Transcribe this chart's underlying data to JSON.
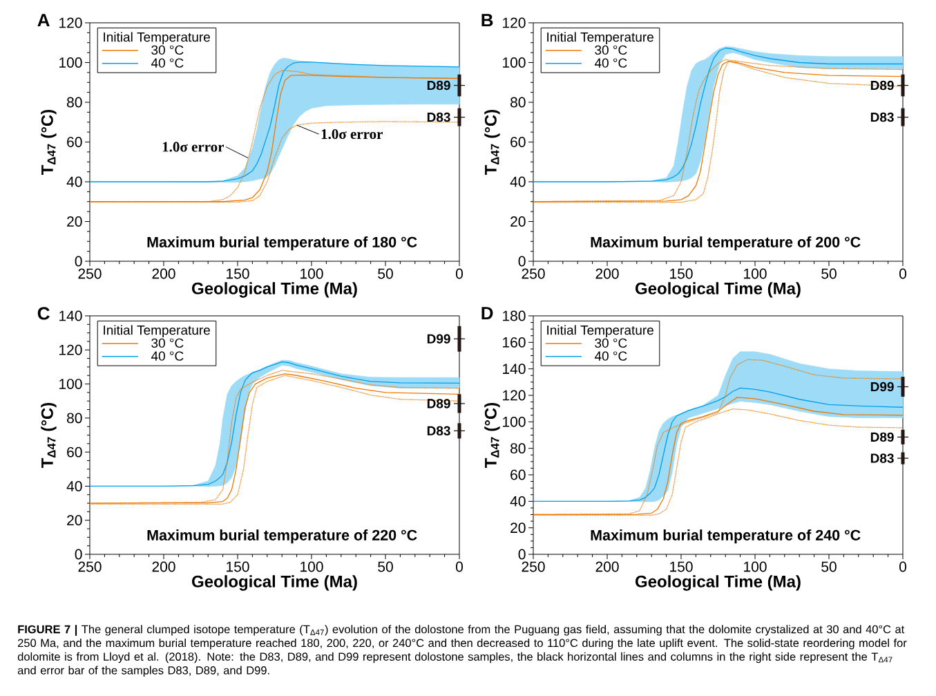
{
  "chart_data": [
    {
      "type": "line",
      "title": "A",
      "xlabel": "Geological Time (Ma)",
      "ylabel": "T$_{Δ47}$ (°C)",
      "legend_title": "Initial Temperature",
      "legend": "top left",
      "xlim": [
        250,
        0
      ],
      "ylim": [
        0,
        120
      ],
      "xticks": [
        250,
        200,
        150,
        100,
        50,
        0
      ],
      "yticks": [
        0,
        20,
        40,
        60,
        80,
        100,
        120
      ],
      "series": [
        {
          "name": "30 °C",
          "color": "#ee7800",
          "x": [
            250,
            200,
            160,
            145,
            140,
            135,
            130,
            127,
            124,
            121,
            118,
            114,
            105,
            80,
            50,
            0
          ],
          "values": [
            30,
            30,
            30,
            30.8,
            32,
            36,
            45,
            55,
            70,
            84,
            91,
            93.5,
            93.7,
            93,
            92.5,
            92
          ]
        },
        {
          "name": "40 °C",
          "color": "#00a0e9",
          "x": [
            250,
            200,
            170,
            160,
            150,
            145,
            140,
            137,
            134,
            131,
            128,
            125,
            122,
            119,
            116,
            112,
            108,
            104,
            100,
            90,
            70,
            50,
            30,
            0
          ],
          "values": [
            40,
            40,
            40,
            40.3,
            41.5,
            43,
            45.5,
            49,
            54,
            61,
            68,
            78,
            89,
            95.5,
            98,
            99.8,
            100.2,
            100.3,
            100.2,
            99.8,
            99,
            98.5,
            98.2,
            97.8
          ],
          "upper": [
            40,
            40,
            40.2,
            40.5,
            43,
            47,
            57,
            66,
            78,
            88,
            95,
            99,
            101.5,
            102.3,
            102,
            101.3,
            100.8,
            100.4,
            100.2,
            99.8,
            99,
            98.5,
            98.2,
            98
          ],
          "lower": [
            40,
            40,
            39.8,
            39.7,
            39.7,
            40,
            40.5,
            41,
            41.5,
            42,
            44,
            48,
            53,
            58,
            63,
            69,
            73,
            75.5,
            77,
            78.3,
            78.7,
            78.9,
            79,
            79
          ]
        },
        {
          "color": "#ee7800",
          "line_style": "dotted",
          "x": [
            250,
            170,
            160,
            155,
            150,
            145,
            140,
            135,
            130,
            125,
            120,
            110,
            100,
            50,
            0
          ],
          "values": [
            30,
            30,
            31,
            33,
            37,
            45,
            60,
            77,
            88,
            94,
            96,
            95.5,
            94,
            92.5,
            92
          ]
        },
        {
          "color": "#ee7800",
          "line_style": "dotted",
          "x": [
            250,
            150,
            140,
            135,
            130,
            125,
            120,
            115,
            110,
            100,
            80,
            50,
            0
          ],
          "values": [
            29.8,
            29.8,
            30.5,
            33,
            40,
            52,
            62,
            66.5,
            68.5,
            69.5,
            70,
            70.3,
            70
          ]
        },
        {
          "type": "scatter",
          "color": "#231815",
          "x": [
            0,
            0
          ],
          "values": [
            88.5,
            72.5
          ],
          "errors": [
            5.5,
            4.5
          ]
        }
      ],
      "annotations": [
        "Maximum burial temperature of 180 °C",
        {
          "text": "1.0σ error",
          "x": 143,
          "y": 52
        },
        {
          "text": "1.0σ error",
          "x": 110,
          "y": 68.5
        },
        {
          "text": "D89",
          "x": 0,
          "y": 88.5
        },
        {
          "text": "D83",
          "x": 0,
          "y": 72.5
        }
      ]
    },
    {
      "type": "line",
      "title": "B",
      "xlabel": "Geological Time (Ma)",
      "ylabel": "T$_{Δ47}$ (°C)",
      "legend_title": "Initial Temperature",
      "legend": "top left",
      "xlim": [
        250,
        0
      ],
      "ylim": [
        0,
        120
      ],
      "xticks": [
        250,
        200,
        150,
        100,
        50,
        0
      ],
      "yticks": [
        0,
        20,
        40,
        60,
        80,
        100,
        120
      ],
      "series": [
        {
          "name": "30 °C",
          "color": "#ee7800",
          "x": [
            250,
            160,
            150,
            145,
            140,
            137,
            134,
            131,
            128,
            125,
            122,
            118,
            112,
            100,
            80,
            50,
            0
          ],
          "values": [
            30,
            30.3,
            31,
            33,
            38,
            45,
            58,
            72,
            85,
            94,
            99,
            100.7,
            100,
            97.5,
            95,
            93.5,
            93
          ]
        },
        {
          "name": "40 °C",
          "color": "#00a0e9",
          "x": [
            250,
            200,
            170,
            160,
            155,
            152,
            149,
            146,
            143,
            140,
            137,
            134,
            131,
            128,
            124,
            120,
            115,
            110,
            100,
            90,
            70,
            50,
            30,
            0
          ],
          "values": [
            40,
            40,
            40.3,
            41,
            42.5,
            44,
            47,
            52,
            59,
            68,
            79,
            88,
            96,
            102,
            106,
            107.3,
            106.8,
            105.5,
            103.5,
            102,
            100,
            99.3,
            99.3,
            99.3
          ],
          "upper": [
            40,
            40,
            40.5,
            42,
            48,
            60,
            75,
            88,
            96,
            99.5,
            100.8,
            101.5,
            103,
            105,
            107,
            108,
            107.8,
            107,
            105.5,
            104.5,
            103.5,
            103,
            103,
            103
          ],
          "lower": [
            40,
            40,
            40,
            39.8,
            40,
            40.2,
            40.5,
            41,
            42,
            44,
            50,
            60,
            74,
            88,
            99,
            104,
            105,
            104,
            101.5,
            100,
            97.5,
            96.8,
            96.8,
            96.8
          ]
        },
        {
          "color": "#ee7800",
          "line_style": "dotted",
          "x": [
            250,
            165,
            155,
            150,
            146,
            142,
            138,
            134,
            130,
            125,
            120,
            110,
            90,
            50,
            0
          ],
          "values": [
            30,
            30.5,
            33,
            40,
            55,
            73,
            86,
            92,
            96,
            99.5,
            101.5,
            100.5,
            98.5,
            97,
            96.5
          ]
        },
        {
          "color": "#ee7800",
          "line_style": "dotted",
          "x": [
            250,
            150,
            140,
            135,
            132,
            129,
            126,
            124,
            121,
            118,
            112,
            100,
            80,
            50,
            0
          ],
          "values": [
            29.7,
            29.7,
            31,
            34,
            42,
            55,
            72,
            85,
            96,
            100.5,
            99.5,
            96.5,
            92.5,
            89.5,
            88
          ]
        },
        {
          "type": "scatter",
          "color": "#231815",
          "x": [
            0,
            0
          ],
          "values": [
            88.5,
            72.5
          ],
          "errors": [
            5.5,
            4.5
          ]
        }
      ],
      "annotations": [
        "Maximum burial temperature of 200 °C",
        {
          "text": "D89",
          "x": 0,
          "y": 88.5
        },
        {
          "text": "D83",
          "x": 0,
          "y": 72.5
        }
      ]
    },
    {
      "type": "line",
      "title": "C",
      "xlabel": "Geological Time (Ma)",
      "ylabel": "T$_{Δ47}$ (°C)",
      "legend_title": "Initial Temperature",
      "legend": "top left",
      "xlim": [
        250,
        0
      ],
      "ylim": [
        0,
        140
      ],
      "xticks": [
        250,
        200,
        150,
        100,
        50,
        0
      ],
      "yticks": [
        0,
        20,
        40,
        60,
        80,
        100,
        120,
        140
      ],
      "series": [
        {
          "name": "30 °C",
          "color": "#ee7800",
          "x": [
            250,
            170,
            160,
            157,
            154,
            151,
            148,
            145,
            142,
            138,
            130,
            118,
            110,
            90,
            70,
            50,
            0
          ],
          "values": [
            30,
            30.2,
            31,
            33,
            38,
            50,
            68,
            86,
            95,
            100,
            103.5,
            106,
            105,
            101.5,
            97.5,
            95,
            94
          ]
        },
        {
          "name": "40 °C",
          "color": "#00a0e9",
          "x": [
            250,
            200,
            180,
            170,
            165,
            162,
            160,
            157,
            154,
            151,
            148,
            145,
            142,
            140,
            135,
            130,
            120,
            115,
            110,
            100,
            80,
            60,
            40,
            0
          ],
          "values": [
            40,
            40,
            40.3,
            41,
            43,
            45,
            47,
            54,
            66,
            82,
            95,
            102,
            105,
            106.5,
            108,
            110,
            113,
            112.5,
            111,
            109,
            104.5,
            101.5,
            100.7,
            100.5
          ],
          "upper": [
            40,
            40,
            40.5,
            43,
            52,
            65,
            80,
            94,
            99,
            101.5,
            103.5,
            105,
            106,
            107,
            108.5,
            110.5,
            114,
            113.8,
            112.5,
            110.5,
            106,
            104,
            103.8,
            103.8
          ],
          "lower": [
            40,
            40,
            40,
            39.8,
            40,
            40.2,
            40.5,
            42,
            45,
            52,
            66,
            84,
            96,
            100,
            104,
            106.5,
            111,
            110.5,
            109,
            107,
            102.5,
            99,
            97.5,
            97.5
          ]
        },
        {
          "color": "#ee7800",
          "line_style": "dotted",
          "x": [
            250,
            175,
            165,
            160,
            157,
            154,
            151,
            148,
            140,
            130,
            120,
            100,
            80,
            60,
            40,
            0
          ],
          "values": [
            30,
            30.5,
            32,
            38,
            55,
            78,
            92,
            97,
            101,
            105,
            108,
            106,
            103,
            99.5,
            98,
            97.5
          ]
        },
        {
          "color": "#ee7800",
          "line_style": "dotted",
          "x": [
            250,
            160,
            155,
            150,
            146,
            143,
            140,
            137,
            130,
            118,
            100,
            80,
            60,
            40,
            0
          ],
          "values": [
            29.5,
            29.5,
            30.5,
            35,
            50,
            70,
            88,
            98,
            101.5,
            105,
            102,
            98,
            93.5,
            91,
            90
          ]
        },
        {
          "type": "scatter",
          "color": "#231815",
          "x": [
            0,
            0,
            0
          ],
          "values": [
            126.5,
            88.5,
            72.5
          ],
          "errors": [
            7.5,
            5.5,
            4.5
          ]
        }
      ],
      "annotations": [
        "Maximum burial temperature of 220 °C",
        {
          "text": "D99",
          "x": 0,
          "y": 126.5
        },
        {
          "text": "D89",
          "x": 0,
          "y": 88.5
        },
        {
          "text": "D83",
          "x": 0,
          "y": 72.5
        }
      ]
    },
    {
      "type": "line",
      "title": "D",
      "xlabel": "Geological Time (Ma)",
      "ylabel": "T$_{Δ47}$ (°C)",
      "legend_title": "Initial Temperature",
      "legend": "top left",
      "xlim": [
        250,
        0
      ],
      "ylim": [
        0,
        180
      ],
      "xticks": [
        250,
        200,
        150,
        100,
        50,
        0
      ],
      "yticks": [
        0,
        20,
        40,
        60,
        80,
        100,
        120,
        140,
        160,
        180
      ],
      "series": [
        {
          "name": "30 °C",
          "color": "#ee7800",
          "x": [
            250,
            180,
            170,
            166,
            162,
            159,
            156,
            153,
            150,
            145,
            135,
            125,
            118,
            112,
            100,
            80,
            60,
            40,
            0
          ],
          "values": [
            30,
            30.2,
            31,
            34,
            42,
            55,
            75,
            92,
            99,
            101,
            104,
            108,
            114,
            118.5,
            117.5,
            113,
            108,
            105.5,
            105
          ]
        },
        {
          "name": "40 °C",
          "color": "#00a0e9",
          "x": [
            250,
            200,
            185,
            178,
            174,
            171,
            168,
            165,
            162,
            159,
            156,
            153,
            150,
            145,
            135,
            125,
            120,
            115,
            110,
            100,
            90,
            70,
            50,
            30,
            0
          ],
          "values": [
            40,
            40,
            40.2,
            41,
            43,
            46,
            50,
            60,
            75,
            90,
            100,
            104.5,
            106,
            108.5,
            112,
            116,
            119,
            123,
            125.5,
            124.5,
            122.5,
            117,
            113,
            112,
            111
          ],
          "upper": [
            40,
            40,
            40.5,
            43,
            50,
            63,
            80,
            93,
            99,
            102,
            104,
            105,
            106.5,
            109,
            112.5,
            120,
            135,
            148,
            153,
            153,
            151,
            144,
            140,
            138.5,
            138
          ],
          "lower": [
            40,
            40,
            40,
            39.8,
            39.7,
            39.7,
            39.8,
            41,
            44,
            48,
            62,
            83,
            96,
            103,
            106.5,
            110,
            112,
            114,
            115.5,
            114.5,
            113,
            108,
            104,
            103,
            103
          ]
        },
        {
          "color": "#ee7800",
          "line_style": "dotted",
          "x": [
            250,
            185,
            178,
            173,
            169,
            166,
            162,
            155,
            145,
            135,
            125,
            120,
            117,
            112,
            105,
            95,
            80,
            60,
            40,
            0
          ],
          "values": [
            30,
            30.5,
            33,
            45,
            65,
            82,
            92,
            96,
            100,
            103.5,
            107,
            120,
            133,
            143,
            147,
            146.5,
            142,
            135.5,
            133,
            132.5
          ]
        },
        {
          "color": "#ee7800",
          "line_style": "dotted",
          "x": [
            250,
            170,
            165,
            160,
            156,
            153,
            150,
            147,
            140,
            130,
            120,
            115,
            105,
            90,
            70,
            50,
            30,
            0
          ],
          "values": [
            29.5,
            29.5,
            30.5,
            34,
            45,
            65,
            85,
            96,
            100,
            104,
            108,
            109.7,
            109,
            106,
            101,
            97.5,
            96,
            95.5
          ]
        },
        {
          "type": "scatter",
          "color": "#231815",
          "x": [
            0,
            0,
            0
          ],
          "values": [
            126.5,
            88.5,
            72.5
          ],
          "errors": [
            7.5,
            5.5,
            4.5
          ]
        }
      ],
      "annotations": [
        "Maximum burial temperature of 240 °C",
        {
          "text": "D99",
          "x": 0,
          "y": 126.5
        },
        {
          "text": "D89",
          "x": 0,
          "y": 88.5
        },
        {
          "text": "D83",
          "x": 0,
          "y": 72.5
        },
        "**FIGURE 7 |** The general clumped isotope temperature (T$_{Δ47}$) evolution of the dolostone from the Puguang gas field, assuming that the dolomite crystalized at 30 and 40°C at 250 Ma, and the maximum burial temperature reached 180, 200, 220, or 240°C and then decreased to 110°C during the late uplift event. The solid-state reordering model for dolomite is from Lloyd et al. (2018). Note: the D83, D89, and D99 represent dolostone samples, the black horizontal lines and columns in the right side represent the T$_{Δ47}$ and error bar of the samples D83, D89, and D99."
      ]
    }
  ]
}
